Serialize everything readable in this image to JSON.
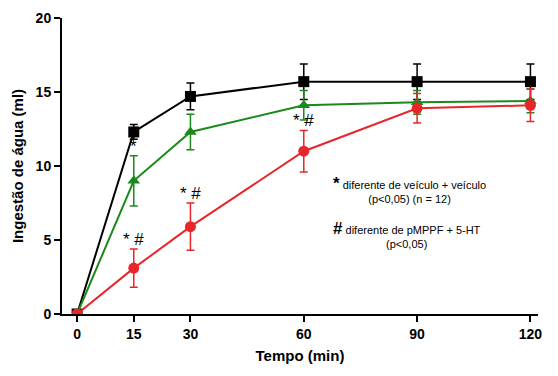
{
  "chart_data": {
    "type": "line",
    "x_label": "Tempo (min)",
    "y_label": "Ingestão de água (ml)",
    "x": [
      0,
      15,
      30,
      60,
      90,
      120
    ],
    "xlim": [
      -4,
      122
    ],
    "xticks": [
      0,
      15,
      30,
      60,
      90,
      120
    ],
    "ylim": [
      0,
      20
    ],
    "yticks": [
      0,
      5,
      10,
      15,
      20
    ],
    "grid": false,
    "series": [
      {
        "color": "#000000",
        "marker": "square",
        "values": [
          0,
          12.3,
          14.7,
          15.7,
          15.7,
          15.7
        ],
        "error": [
          0,
          0.5,
          0.9,
          1.2,
          1.2,
          1.2
        ],
        "marks": [
          null,
          null,
          null,
          null,
          null,
          null
        ]
      },
      {
        "color": "#1a8a1a",
        "marker": "triangle-up",
        "values": [
          0,
          9.0,
          12.3,
          14.1,
          14.3,
          14.4
        ],
        "error": [
          0,
          1.7,
          1.2,
          1.0,
          0.8,
          0.8
        ],
        "marks": [
          null,
          "*",
          null,
          null,
          null,
          null
        ]
      },
      {
        "color": "#e8262a",
        "marker": "circle",
        "values": [
          0,
          3.1,
          5.9,
          11.0,
          13.9,
          14.1
        ],
        "error": [
          0,
          1.3,
          1.6,
          1.4,
          1.0,
          1.1
        ],
        "marks": [
          null,
          "*#",
          "*#",
          "*#",
          null,
          null
        ]
      }
    ],
    "annotations": [
      {
        "symbol": "*",
        "lines": [
          "diferente de veículo + veículo",
          "(p<0,05) (n = 12)"
        ]
      },
      {
        "symbol": "#",
        "lines": [
          "diferente de pMPPF + 5-HT",
          "(p<0,05)"
        ]
      }
    ]
  }
}
